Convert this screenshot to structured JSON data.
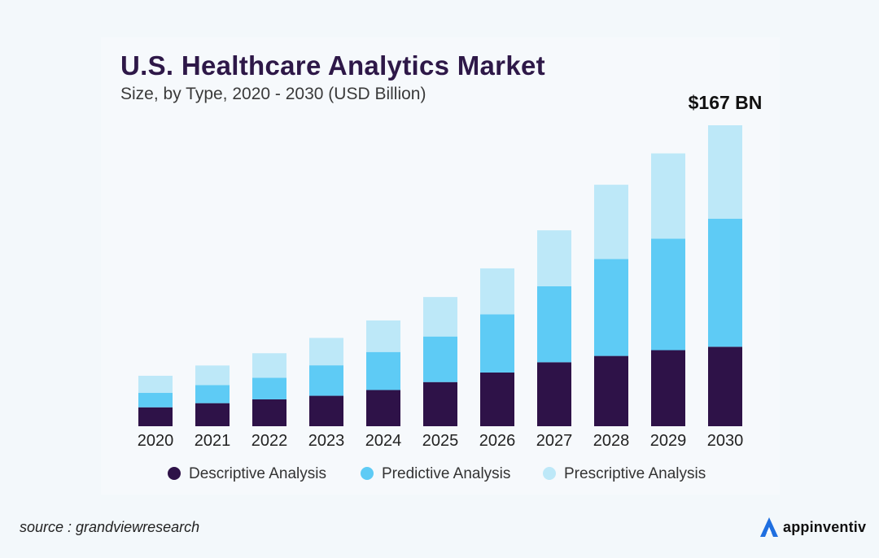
{
  "title": "U.S. Healthcare Analytics Market",
  "subtitle": "Size, by Type, 2020 - 2030 (USD Billion)",
  "source": "source : grandviewresearch",
  "brand": "appinventiv",
  "colors": {
    "descriptive": "#2e1248",
    "predictive": "#5ecbf5",
    "prescriptive": "#bde8f8",
    "title": "#2e1848",
    "logo_accent": "#1f6fe0"
  },
  "chart_data": {
    "type": "bar",
    "stacked": true,
    "title": "U.S. Healthcare Analytics Market",
    "subtitle": "Size, by Type, 2020 - 2030 (USD Billion)",
    "categories": [
      "2020",
      "2021",
      "2022",
      "2023",
      "2024",
      "2025",
      "2026",
      "2027",
      "2028",
      "2029",
      "2030"
    ],
    "series": [
      {
        "name": "Descriptive Analysis",
        "color": "#2e1248",
        "values": [
          10.5,
          12.8,
          14.9,
          16.9,
          20.1,
          24.5,
          29.8,
          35.5,
          39.0,
          42.2,
          44.1
        ]
      },
      {
        "name": "Predictive Analysis",
        "color": "#5ecbf5",
        "values": [
          8.0,
          10.0,
          12.0,
          16.9,
          21.1,
          25.3,
          32.3,
          42.2,
          53.8,
          61.9,
          71.1
        ]
      },
      {
        "name": "Prescriptive Analysis",
        "color": "#bde8f8",
        "values": [
          9.5,
          10.9,
          13.6,
          15.2,
          17.5,
          21.9,
          25.5,
          31.0,
          41.2,
          47.3,
          51.8
        ]
      }
    ],
    "annotation": {
      "category": "2030",
      "text": "$167 BN"
    },
    "ylim": [
      0,
      170
    ],
    "legend_position": "bottom",
    "xlabel": "",
    "ylabel": ""
  }
}
